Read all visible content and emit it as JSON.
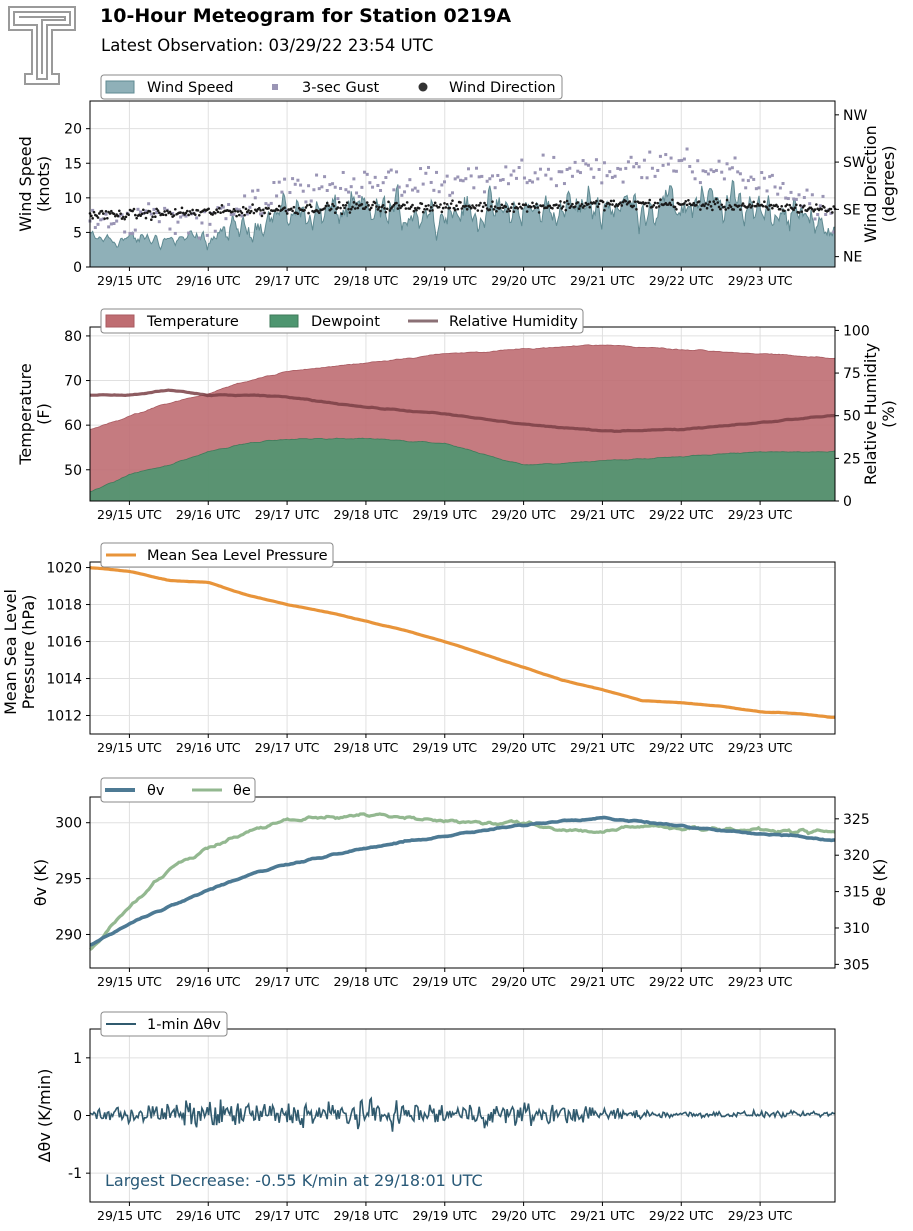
{
  "header": {
    "title": "10-Hour Meteogram for Station 0219A",
    "subtitle": "Latest Observation: 03/29/22 23:54 UTC"
  },
  "colors": {
    "wind_speed": "#8fb0b8",
    "wind_speed_line": "#5f8a92",
    "gust": "#9a95b5",
    "wind_dir": "#1a1a1a",
    "temperature": "#bf6d72",
    "dewpoint": "#4e9670",
    "rh": "#7a3f45",
    "rh_legend": "#8b7075",
    "pressure": "#e8943a",
    "theta_v": "#4d7a94",
    "theta_e": "#93b890",
    "dtheta": "#305a6e",
    "annotation": "#2a5a78",
    "grid": "#e0e0e0",
    "logo": "#9a9a9a"
  },
  "x_ticks": [
    "29/15 UTC",
    "29/16 UTC",
    "29/17 UTC",
    "29/18 UTC",
    "29/19 UTC",
    "29/20 UTC",
    "29/21 UTC",
    "29/22 UTC",
    "29/23 UTC"
  ],
  "chart_data": [
    {
      "type": "area",
      "name": "wind",
      "legend": [
        "Wind Speed",
        "3-sec Gust",
        "Wind Direction"
      ],
      "ylabel_lines": [
        "Wind Speed",
        "(knots)"
      ],
      "y2label_lines": [
        "Wind Direction",
        "(degrees)"
      ],
      "ylim": [
        0,
        24
      ],
      "yticks": [
        0,
        5,
        10,
        15,
        20
      ],
      "y2ticks": [
        "NE",
        "SE",
        "SW",
        "NW"
      ],
      "x_hours": [
        14.5,
        15,
        16,
        17,
        18,
        19,
        20,
        21,
        22,
        23,
        23.9
      ],
      "wind_speed": [
        4,
        4,
        4,
        8,
        8,
        8,
        8,
        9,
        9,
        9,
        6
      ],
      "gust": [
        6,
        7,
        7,
        11,
        12,
        12,
        13,
        14,
        15,
        13,
        8
      ],
      "wind_direction_deg": [
        125,
        125,
        130,
        135,
        140,
        140,
        140,
        145,
        145,
        140,
        135
      ]
    },
    {
      "type": "area",
      "name": "thermo",
      "legend": [
        "Temperature",
        "Dewpoint",
        "Relative Humidity"
      ],
      "ylabel_lines": [
        "Temperature",
        "(F)"
      ],
      "y2label_lines": [
        "Relative Humidity",
        "(%)"
      ],
      "ylim": [
        43,
        82
      ],
      "yticks": [
        50,
        60,
        70,
        80
      ],
      "y2lim": [
        0,
        102
      ],
      "y2ticks": [
        0,
        25,
        50,
        75,
        100
      ],
      "x_hours": [
        14.5,
        15,
        15.5,
        16,
        16.5,
        17,
        17.5,
        18,
        19,
        20,
        21,
        22,
        23,
        23.9
      ],
      "temperature": [
        59,
        62,
        65,
        67,
        70,
        72,
        73,
        74,
        76,
        77,
        78,
        77,
        76,
        75
      ],
      "dewpoint": [
        45,
        49,
        51,
        54,
        56,
        57,
        57,
        57,
        56,
        51,
        52,
        53,
        54,
        54
      ],
      "relative_humidity": [
        62,
        62,
        65,
        62,
        62,
        61,
        58,
        55,
        51,
        45,
        41,
        42,
        46,
        50
      ]
    },
    {
      "type": "line",
      "name": "pressure",
      "legend": [
        "Mean Sea Level Pressure"
      ],
      "ylabel_lines": [
        "Mean Sea Level",
        "Pressure (hPa)"
      ],
      "ylim": [
        1011,
        1020.3
      ],
      "yticks": [
        1012,
        1014,
        1016,
        1018,
        1020
      ],
      "x_hours": [
        14.5,
        15,
        15.5,
        16,
        16.5,
        17,
        17.5,
        18,
        18.5,
        19,
        19.5,
        20,
        20.5,
        21,
        21.5,
        22,
        22.5,
        23,
        23.5,
        23.9
      ],
      "mslp": [
        1020,
        1019.8,
        1019.3,
        1019.2,
        1018.5,
        1018,
        1017.6,
        1017.1,
        1016.6,
        1016,
        1015.3,
        1014.6,
        1013.9,
        1013.4,
        1012.8,
        1012.7,
        1012.5,
        1012.2,
        1012.1,
        1011.9
      ]
    },
    {
      "type": "line",
      "name": "theta",
      "legend": [
        "θv",
        "θe"
      ],
      "ylabel": "θv (K)",
      "y2label": "θe (K)",
      "ylim": [
        287,
        302.3
      ],
      "yticks": [
        290,
        295,
        300
      ],
      "y2lim": [
        304.5,
        328
      ],
      "y2ticks": [
        305,
        310,
        315,
        320,
        325
      ],
      "x_hours": [
        14.5,
        15,
        15.5,
        16,
        16.5,
        17,
        17.5,
        18,
        18.5,
        19,
        19.5,
        20,
        20.5,
        21,
        21.5,
        22,
        22.5,
        23,
        23.5,
        23.9
      ],
      "theta_v": [
        289,
        291,
        292.5,
        294,
        295.3,
        296.3,
        297,
        297.7,
        298.3,
        298.8,
        299.3,
        299.8,
        300.2,
        300.4,
        300.1,
        299.7,
        299.3,
        299,
        298.8,
        298.4
      ],
      "theta_e": [
        307,
        313,
        318,
        321,
        323.3,
        324.8,
        325.3,
        325.5,
        325.2,
        324.8,
        324.3,
        324.5,
        323.5,
        323.2,
        324,
        323.8,
        323.6,
        323.4,
        323.3,
        323.2
      ]
    },
    {
      "type": "line",
      "name": "dtheta",
      "legend": [
        "1-min Δθv"
      ],
      "ylabel": "Δθv (K/min)",
      "ylim": [
        -1.5,
        1.5
      ],
      "yticks": [
        -1,
        0,
        1
      ],
      "annotation": "Largest Decrease: -0.55 K/min at 29/18:01 UTC",
      "noise_amplitude_by_hour": {
        "x_hours": [
          14.5,
          16,
          17,
          18,
          19,
          20,
          21,
          22,
          23.9
        ],
        "amplitude": [
          0.12,
          0.25,
          0.22,
          0.25,
          0.2,
          0.22,
          0.12,
          0.06,
          0.05
        ]
      }
    }
  ]
}
